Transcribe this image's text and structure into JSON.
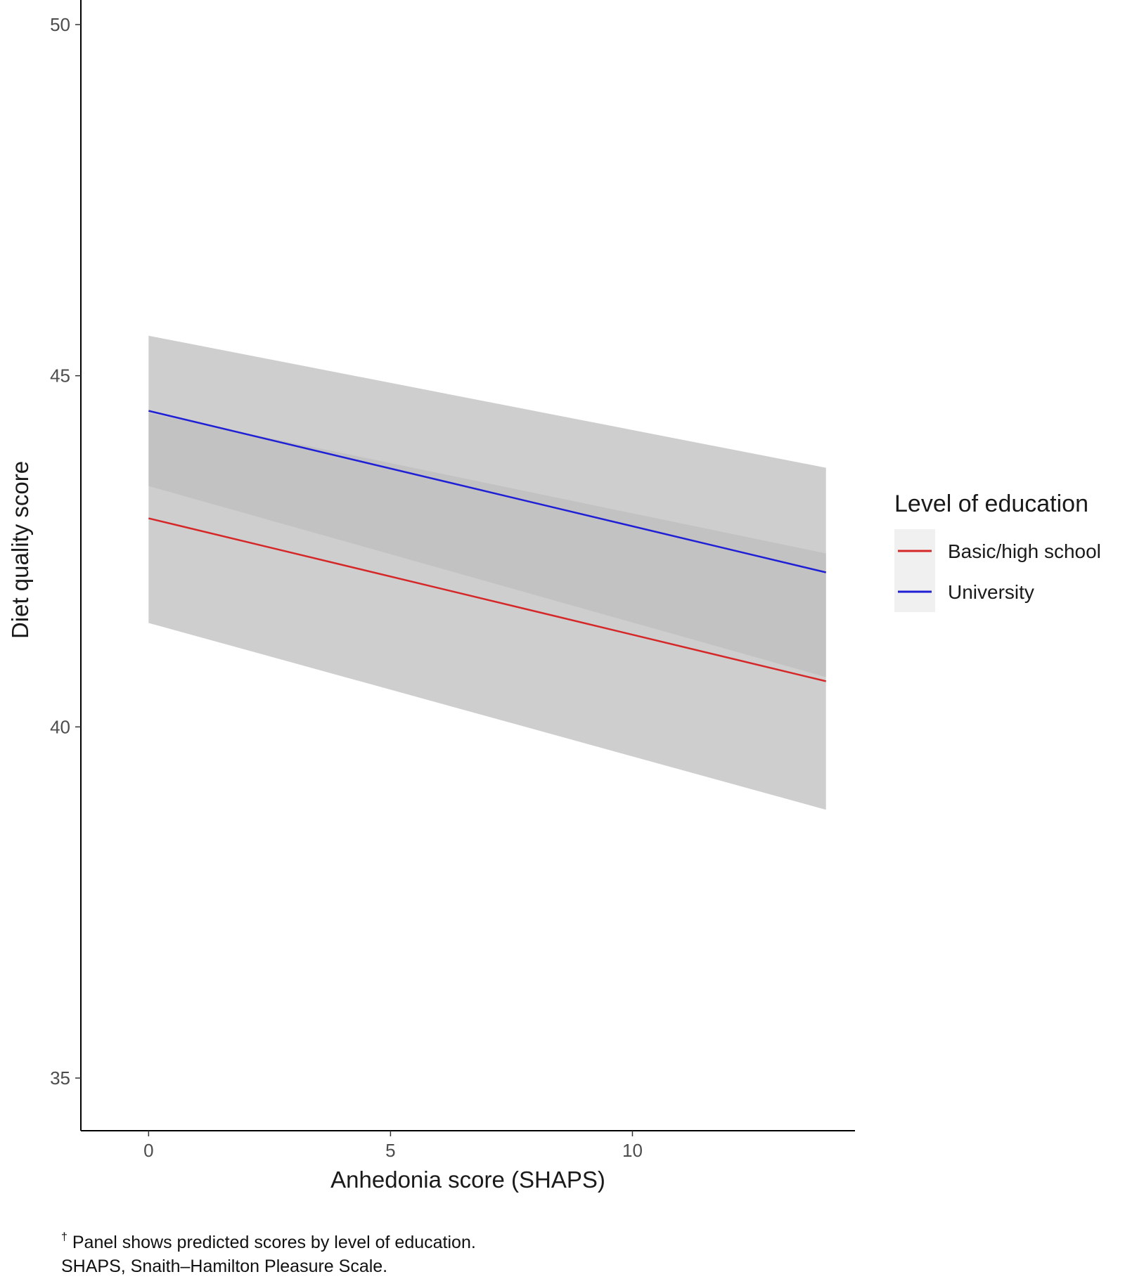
{
  "chart_data": {
    "type": "line",
    "title": "",
    "xlabel": "Anhedonia score (SHAPS)",
    "ylabel": "Diet quality score",
    "xlim": [
      -1.4,
      14.6
    ],
    "ylim": [
      34.25,
      50.35
    ],
    "x_ticks": [
      0,
      5,
      10
    ],
    "y_ticks": [
      35,
      40,
      45,
      50
    ],
    "grid": false,
    "legend": {
      "title": "Level of education",
      "position": "right",
      "entries": [
        "Basic/high school",
        "University"
      ]
    },
    "series": [
      {
        "name": "Basic/high school",
        "color": "#d62728",
        "x": [
          0,
          14
        ],
        "values": [
          42.97,
          40.65
        ],
        "ci_lower": [
          41.48,
          38.82
        ],
        "ci_upper": [
          44.47,
          42.47
        ]
      },
      {
        "name": "University",
        "color": "#1f1fd6",
        "x": [
          0,
          14
        ],
        "values": [
          44.5,
          42.2
        ],
        "ci_lower": [
          43.43,
          40.71
        ],
        "ci_upper": [
          45.57,
          43.69
        ]
      }
    ]
  },
  "footnote": {
    "marker": "†",
    "line1": "Panel shows predicted scores by level of education.",
    "line2": "SHAPS, Snaith–Hamilton Pleasure Scale."
  },
  "colors": {
    "ci_fill": "#bdbdbd",
    "axis": "#000000",
    "legend_key_bg": "#f0f0f0"
  }
}
